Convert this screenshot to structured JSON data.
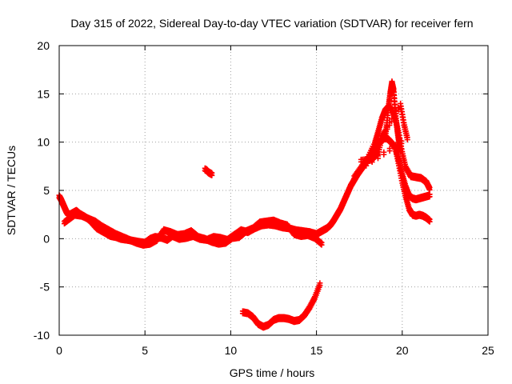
{
  "chart_data": {
    "type": "scatter",
    "title": "Day 315 of 2022, Sidereal Day-to-day VTEC variation (SDTVAR) for receiver fern",
    "xlabel": "GPS time / hours",
    "ylabel": "SDTVAR / TECUs",
    "xlim": [
      0,
      25
    ],
    "ylim": [
      -10,
      20
    ],
    "xticks": [
      0,
      5,
      10,
      15,
      20,
      25
    ],
    "yticks": [
      -10,
      -5,
      0,
      5,
      10,
      15,
      20
    ],
    "xtick_labels": [
      "0",
      "5",
      "10",
      "15",
      "20",
      "25"
    ],
    "ytick_labels": [
      "-10",
      "-5",
      "0",
      "5",
      "10",
      "15",
      "20"
    ],
    "grid": true,
    "marker": "+",
    "color": "#ff0000",
    "series": [
      {
        "name": "main-trace",
        "x": [
          0.0,
          0.1,
          0.2,
          0.3,
          0.4,
          0.5,
          0.6,
          0.8,
          1.0,
          1.2,
          1.5,
          1.8,
          2.0,
          2.2,
          2.5,
          2.8,
          3.0,
          3.3,
          3.6,
          4.0,
          4.3,
          4.6,
          5.0,
          5.3,
          5.6,
          6.0,
          6.3,
          6.6,
          7.0,
          7.4,
          7.8,
          8.2,
          8.6,
          9.0,
          9.4,
          9.8,
          10.2,
          10.6,
          11.0,
          11.4,
          11.8,
          12.2,
          12.6,
          13.0,
          13.4,
          13.8,
          14.2,
          14.6,
          15.0,
          15.2,
          15.4,
          15.6,
          15.8,
          16.0,
          16.2,
          16.4,
          16.6,
          16.8,
          17.0,
          17.2,
          17.4,
          17.6,
          17.8,
          18.0,
          18.2,
          18.4,
          18.6,
          18.8,
          19.0,
          19.2,
          19.4,
          19.6,
          19.8,
          20.0,
          20.2,
          20.4,
          20.6,
          20.8,
          21.0,
          21.2,
          21.4,
          21.6
        ],
        "y": [
          4.5,
          4.2,
          3.8,
          3.4,
          3.0,
          2.7,
          2.6,
          2.8,
          3.0,
          2.7,
          2.4,
          2.0,
          1.6,
          1.2,
          0.9,
          0.6,
          0.4,
          0.3,
          0.1,
          0.0,
          -0.1,
          -0.2,
          -0.3,
          0.1,
          0.3,
          0.2,
          0.0,
          0.4,
          0.1,
          0.2,
          0.4,
          0.1,
          0.0,
          0.3,
          0.2,
          0.0,
          0.5,
          1.0,
          0.8,
          1.2,
          1.5,
          1.6,
          1.5,
          1.3,
          1.2,
          1.0,
          0.9,
          0.8,
          0.6,
          0.8,
          1.0,
          1.2,
          1.5,
          2.0,
          2.6,
          3.2,
          4.0,
          4.8,
          5.6,
          6.2,
          6.8,
          7.3,
          7.8,
          8.3,
          8.9,
          9.4,
          9.9,
          10.3,
          10.6,
          10.4,
          10.0,
          9.5,
          8.2,
          6.8,
          5.5,
          4.6,
          4.3,
          4.2,
          4.3,
          4.4,
          4.5,
          4.6
        ]
      },
      {
        "name": "upper-branch",
        "x": [
          17.2,
          17.6,
          18.0,
          18.4,
          18.6,
          18.8,
          19.0,
          19.2,
          19.4,
          19.6,
          19.8,
          20.0,
          20.2,
          20.5,
          20.8,
          21.1,
          21.4,
          21.6
        ],
        "y": [
          6.5,
          7.5,
          8.5,
          10.0,
          11.2,
          12.5,
          13.4,
          13.8,
          13.5,
          12.5,
          11.0,
          9.0,
          7.5,
          6.6,
          6.5,
          6.4,
          6.0,
          5.3
        ]
      },
      {
        "name": "secondary-band",
        "x": [
          0.3,
          0.6,
          0.9,
          1.3,
          1.7,
          2.1,
          2.5,
          2.9,
          3.3,
          3.7,
          4.1,
          4.5,
          4.9,
          5.3,
          5.7,
          6.1,
          6.5,
          6.9,
          7.3,
          7.7,
          8.1,
          8.5,
          8.9,
          9.3,
          9.7,
          10.1,
          10.5,
          10.9,
          11.3,
          11.7,
          12.1,
          12.5,
          12.9,
          13.3,
          13.7,
          14.1,
          14.5,
          14.9,
          15.3
        ],
        "y": [
          1.8,
          2.2,
          2.6,
          2.5,
          2.2,
          1.9,
          1.4,
          1.0,
          0.6,
          0.3,
          0.0,
          -0.3,
          -0.5,
          -0.4,
          0.0,
          1.0,
          0.8,
          0.5,
          0.6,
          0.9,
          0.3,
          0.1,
          -0.2,
          -0.4,
          -0.3,
          0.2,
          0.3,
          0.9,
          1.2,
          1.8,
          1.9,
          2.0,
          1.7,
          1.5,
          0.6,
          0.4,
          0.5,
          0.2,
          -0.4
        ]
      },
      {
        "name": "late-decline",
        "x": [
          19.6,
          19.8,
          20.0,
          20.2,
          20.4,
          20.6,
          20.8,
          21.0,
          21.2,
          21.4,
          21.6
        ],
        "y": [
          9.5,
          7.8,
          6.0,
          4.5,
          3.2,
          2.6,
          2.5,
          2.6,
          2.5,
          2.3,
          2.0
        ]
      },
      {
        "name": "spike",
        "x": [
          19.0,
          19.1,
          19.2,
          19.3,
          19.4,
          19.5,
          19.6,
          19.7,
          19.8,
          19.9
        ],
        "y": [
          10.5,
          12.0,
          13.8,
          15.2,
          16.3,
          15.5,
          13.2,
          11.5,
          10.2,
          9.2
        ]
      },
      {
        "name": "negative-segment",
        "x": [
          10.7,
          11.0,
          11.3,
          11.6,
          11.9,
          12.2,
          12.5,
          12.8,
          13.1,
          13.4,
          13.7,
          14.0,
          14.3,
          14.6,
          14.9,
          15.2
        ],
        "y": [
          -7.5,
          -7.6,
          -8.0,
          -8.7,
          -9.0,
          -8.8,
          -8.3,
          -8.1,
          -8.1,
          -8.2,
          -8.4,
          -8.3,
          -7.8,
          -7.0,
          -6.0,
          -4.6
        ]
      },
      {
        "name": "isolated-cluster",
        "x": [
          8.5,
          8.6,
          8.7,
          8.8,
          8.9
        ],
        "y": [
          7.3,
          7.2,
          7.0,
          6.9,
          6.8
        ]
      },
      {
        "name": "scatter-points",
        "x": [
          17.6,
          18.2,
          18.6,
          18.8,
          19.0,
          19.9,
          20.1,
          20.3,
          17.9,
          18.4
        ],
        "y": [
          8.2,
          8.3,
          9.0,
          10.6,
          11.2,
          14.0,
          12.0,
          10.5,
          7.8,
          9.8
        ]
      }
    ]
  }
}
